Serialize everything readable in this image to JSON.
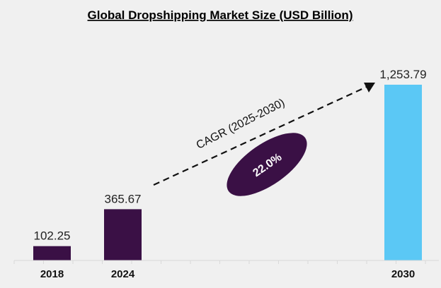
{
  "chart_data": {
    "type": "bar",
    "title": "Global Dropshipping Market Size (USD Billion)",
    "categories": [
      "2018",
      "2024",
      "2030"
    ],
    "values": [
      102.25,
      365.67,
      1253.79
    ],
    "value_labels": [
      "102.25",
      "365.67",
      "1,253.79"
    ],
    "colors": [
      "#3a1045",
      "#3a1045",
      "#5bc8f5"
    ],
    "ylim": [
      0,
      1253.79
    ],
    "grid": false,
    "annotation": {
      "label": "CAGR (2025-2030)",
      "value": "22.0%",
      "color": "#3a1045"
    }
  }
}
